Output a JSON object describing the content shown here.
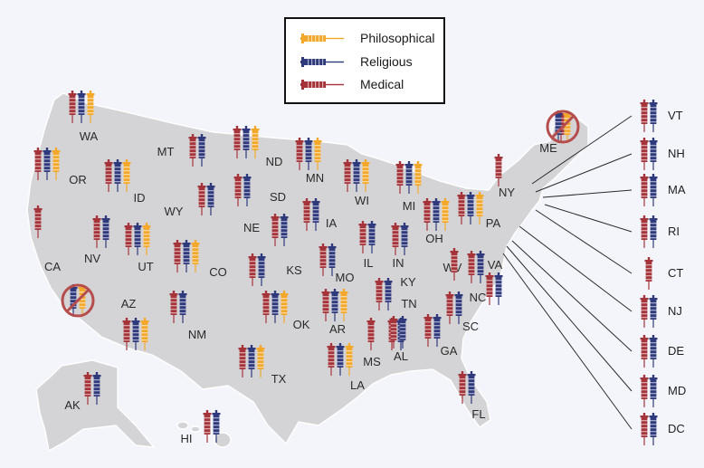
{
  "colors": {
    "philosophical": "#f4a82b",
    "religious": "#2f3a7c",
    "medical": "#a5343a",
    "ban_circle": "#b54d4d",
    "map_fill": "#d4d4d6",
    "callout_line": "#2b2b2b"
  },
  "legend": {
    "items": [
      {
        "key": "philosophical",
        "label": "Philosophical",
        "icon": "syringe-icon"
      },
      {
        "key": "religious",
        "label": "Religious",
        "icon": "syringe-icon"
      },
      {
        "key": "medical",
        "label": "Medical",
        "icon": "syringe-icon"
      }
    ]
  },
  "states": [
    {
      "abbr": "WA",
      "exemptions": [
        "medical",
        "religious",
        "philosophical"
      ]
    },
    {
      "abbr": "OR",
      "exemptions": [
        "medical",
        "religious",
        "philosophical"
      ]
    },
    {
      "abbr": "CA",
      "exemptions": [
        "medical"
      ],
      "ban_icon_region": true
    },
    {
      "abbr": "NV",
      "exemptions": [
        "medical",
        "religious"
      ]
    },
    {
      "abbr": "ID",
      "exemptions": [
        "medical",
        "religious",
        "philosophical"
      ]
    },
    {
      "abbr": "MT",
      "exemptions": [
        "medical",
        "religious"
      ]
    },
    {
      "abbr": "WY",
      "exemptions": [
        "medical",
        "religious"
      ]
    },
    {
      "abbr": "UT",
      "exemptions": [
        "medical",
        "religious",
        "philosophical"
      ]
    },
    {
      "abbr": "AZ",
      "exemptions": [
        "medical",
        "religious",
        "philosophical"
      ]
    },
    {
      "abbr": "CO",
      "exemptions": [
        "medical",
        "religious",
        "philosophical"
      ]
    },
    {
      "abbr": "NM",
      "exemptions": [
        "medical",
        "religious"
      ]
    },
    {
      "abbr": "ND",
      "exemptions": [
        "medical",
        "religious",
        "philosophical"
      ]
    },
    {
      "abbr": "SD",
      "exemptions": [
        "medical",
        "religious"
      ]
    },
    {
      "abbr": "NE",
      "exemptions": [
        "medical",
        "religious"
      ]
    },
    {
      "abbr": "KS",
      "exemptions": [
        "medical",
        "religious"
      ]
    },
    {
      "abbr": "OK",
      "exemptions": [
        "medical",
        "religious",
        "philosophical"
      ]
    },
    {
      "abbr": "TX",
      "exemptions": [
        "medical",
        "religious",
        "philosophical"
      ]
    },
    {
      "abbr": "MN",
      "exemptions": [
        "medical",
        "religious",
        "philosophical"
      ]
    },
    {
      "abbr": "IA",
      "exemptions": [
        "medical",
        "religious"
      ]
    },
    {
      "abbr": "MO",
      "exemptions": [
        "medical",
        "religious"
      ]
    },
    {
      "abbr": "AR",
      "exemptions": [
        "medical",
        "religious",
        "philosophical"
      ]
    },
    {
      "abbr": "LA",
      "exemptions": [
        "medical",
        "religious",
        "philosophical"
      ]
    },
    {
      "abbr": "WI",
      "exemptions": [
        "medical",
        "religious",
        "philosophical"
      ]
    },
    {
      "abbr": "IL",
      "exemptions": [
        "medical",
        "religious"
      ]
    },
    {
      "abbr": "MS",
      "exemptions": [
        "medical"
      ]
    },
    {
      "abbr": "MI",
      "exemptions": [
        "medical",
        "religious",
        "philosophical"
      ]
    },
    {
      "abbr": "IN",
      "exemptions": [
        "medical",
        "religious"
      ]
    },
    {
      "abbr": "KY",
      "exemptions": [
        "medical",
        "religious"
      ]
    },
    {
      "abbr": "TN",
      "exemptions": [
        "medical",
        "religious"
      ]
    },
    {
      "abbr": "AL",
      "exemptions": [
        "medical",
        "religious"
      ]
    },
    {
      "abbr": "OH",
      "exemptions": [
        "medical",
        "religious",
        "philosophical"
      ]
    },
    {
      "abbr": "GA",
      "exemptions": [
        "medical",
        "religious"
      ]
    },
    {
      "abbr": "FL",
      "exemptions": [
        "medical",
        "religious"
      ]
    },
    {
      "abbr": "SC",
      "exemptions": [
        "medical",
        "religious"
      ]
    },
    {
      "abbr": "NC",
      "exemptions": [
        "medical",
        "religious"
      ]
    },
    {
      "abbr": "WV",
      "exemptions": [
        "medical"
      ]
    },
    {
      "abbr": "VA",
      "exemptions": [
        "medical",
        "religious"
      ]
    },
    {
      "abbr": "PA",
      "exemptions": [
        "medical",
        "religious",
        "philosophical"
      ]
    },
    {
      "abbr": "NY",
      "exemptions": [
        "medical"
      ]
    },
    {
      "abbr": "ME",
      "exemptions": [
        "medical"
      ],
      "ban_icon_region": true
    },
    {
      "abbr": "AK",
      "exemptions": [
        "medical",
        "religious"
      ]
    },
    {
      "abbr": "HI",
      "exemptions": [
        "medical",
        "religious"
      ]
    }
  ],
  "callouts": [
    {
      "abbr": "VT",
      "exemptions": [
        "medical",
        "religious"
      ]
    },
    {
      "abbr": "NH",
      "exemptions": [
        "medical",
        "religious"
      ]
    },
    {
      "abbr": "MA",
      "exemptions": [
        "medical",
        "religious"
      ]
    },
    {
      "abbr": "RI",
      "exemptions": [
        "medical",
        "religious"
      ]
    },
    {
      "abbr": "CT",
      "exemptions": [
        "medical"
      ]
    },
    {
      "abbr": "NJ",
      "exemptions": [
        "medical",
        "religious"
      ]
    },
    {
      "abbr": "DE",
      "exemptions": [
        "medical",
        "religious"
      ]
    },
    {
      "abbr": "MD",
      "exemptions": [
        "medical",
        "religious"
      ]
    },
    {
      "abbr": "DC",
      "exemptions": [
        "medical",
        "religious"
      ]
    }
  ]
}
